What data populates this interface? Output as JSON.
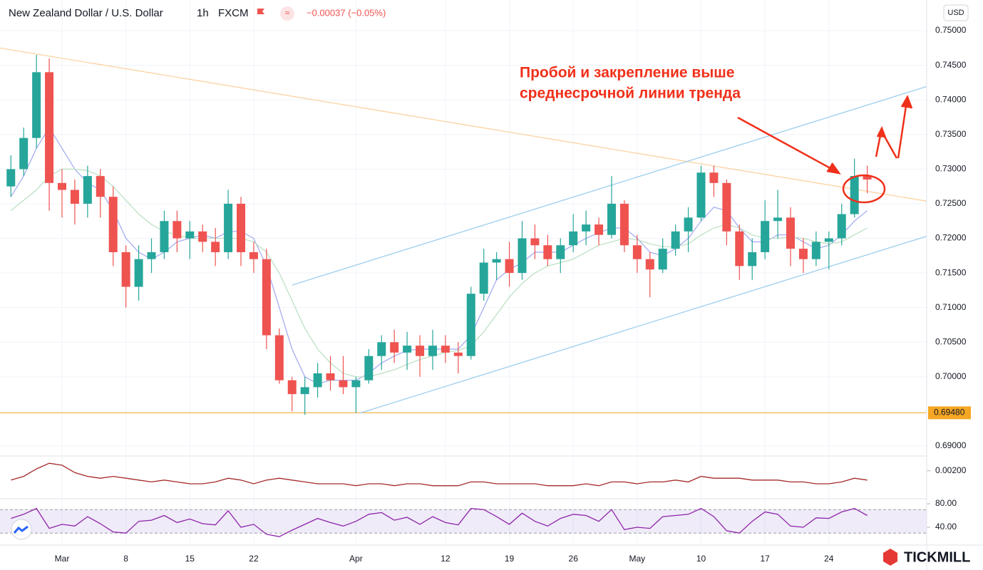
{
  "chart_data": {
    "type": "candlestick",
    "title": "New Zealand Dollar / U.S. Dollar",
    "interval": "1h",
    "source": "FXCM",
    "change": "−0.00037 (−0.05%)",
    "currency": "USD",
    "annotation": [
      "Пробой и закрепление выше",
      "среднесрочной линии тренда"
    ],
    "brand": "TICKMILL",
    "up_color": "#26a69a",
    "down_color": "#ef5350",
    "grid": true,
    "categories": [
      null,
      null,
      null,
      null,
      "Mar",
      null,
      null,
      null,
      null,
      "8",
      null,
      null,
      null,
      null,
      "15",
      null,
      null,
      null,
      null,
      "22",
      null,
      null,
      null,
      null,
      null,
      null,
      null,
      "Apr",
      null,
      null,
      null,
      null,
      null,
      null,
      "12",
      null,
      null,
      null,
      null,
      "19",
      null,
      null,
      null,
      null,
      "26",
      null,
      null,
      null,
      null,
      "May",
      null,
      null,
      null,
      null,
      "10",
      null,
      null,
      null,
      null,
      "17",
      null,
      null,
      null,
      null,
      "24",
      null,
      null,
      null
    ],
    "open": [
      0.7275,
      0.73,
      0.7345,
      0.744,
      0.728,
      0.727,
      0.725,
      0.729,
      0.726,
      0.718,
      0.713,
      0.717,
      0.718,
      0.7225,
      0.72,
      0.721,
      0.7195,
      0.718,
      0.725,
      0.718,
      0.717,
      0.706,
      0.6995,
      0.6975,
      0.6985,
      0.7005,
      0.6995,
      0.6985,
      0.6995,
      0.703,
      0.705,
      0.7035,
      0.7045,
      0.703,
      0.7045,
      0.7035,
      0.703,
      0.712,
      0.7165,
      0.717,
      0.715,
      0.72,
      0.719,
      0.717,
      0.719,
      0.721,
      0.722,
      0.7205,
      0.725,
      0.719,
      0.717,
      0.7155,
      0.7185,
      0.721,
      0.723,
      0.7295,
      0.728,
      0.721,
      0.716,
      0.718,
      0.7225,
      0.723,
      0.7185,
      0.717,
      0.7195,
      0.72,
      0.7235,
      0.729
    ],
    "high": [
      0.732,
      0.736,
      0.7465,
      0.746,
      0.73,
      0.7285,
      0.7305,
      0.73,
      0.7275,
      0.719,
      0.719,
      0.72,
      0.724,
      0.724,
      0.7225,
      0.722,
      0.7215,
      0.727,
      0.726,
      0.7195,
      0.7185,
      0.707,
      0.7,
      0.7,
      0.702,
      0.703,
      0.703,
      0.7,
      0.704,
      0.706,
      0.7068,
      0.7065,
      0.706,
      0.7068,
      0.706,
      0.705,
      0.713,
      0.7185,
      0.718,
      0.7195,
      0.7225,
      0.722,
      0.7205,
      0.72,
      0.7235,
      0.724,
      0.723,
      0.729,
      0.7255,
      0.7205,
      0.718,
      0.72,
      0.722,
      0.7245,
      0.7305,
      0.7305,
      0.7285,
      0.722,
      0.72,
      0.7255,
      0.727,
      0.7245,
      0.72,
      0.721,
      0.721,
      0.725,
      0.7315,
      0.7305
    ],
    "low": [
      0.726,
      0.729,
      0.733,
      0.724,
      0.723,
      0.722,
      0.723,
      0.723,
      0.716,
      0.71,
      0.711,
      0.715,
      0.717,
      0.718,
      0.717,
      0.718,
      0.716,
      0.717,
      0.716,
      0.715,
      0.704,
      0.699,
      0.695,
      0.6945,
      0.697,
      0.698,
      0.6975,
      0.6948,
      0.699,
      0.701,
      0.702,
      0.701,
      0.7,
      0.701,
      0.702,
      0.7005,
      0.7025,
      0.711,
      0.714,
      0.713,
      0.714,
      0.717,
      0.716,
      0.715,
      0.718,
      0.719,
      0.719,
      0.72,
      0.718,
      0.715,
      0.7115,
      0.715,
      0.7175,
      0.718,
      0.7225,
      0.726,
      0.719,
      0.714,
      0.714,
      0.717,
      0.72,
      0.716,
      0.715,
      0.716,
      0.7155,
      0.719,
      0.723,
      0.7265
    ],
    "close": [
      0.73,
      0.7345,
      0.744,
      0.728,
      0.727,
      0.725,
      0.729,
      0.726,
      0.718,
      0.713,
      0.717,
      0.718,
      0.7225,
      0.72,
      0.721,
      0.7195,
      0.718,
      0.725,
      0.718,
      0.717,
      0.706,
      0.6995,
      0.6975,
      0.6985,
      0.7005,
      0.6995,
      0.6985,
      0.6995,
      0.703,
      0.705,
      0.7035,
      0.7045,
      0.703,
      0.7045,
      0.7035,
      0.703,
      0.712,
      0.7165,
      0.717,
      0.715,
      0.72,
      0.719,
      0.717,
      0.719,
      0.721,
      0.722,
      0.7205,
      0.725,
      0.719,
      0.717,
      0.7155,
      0.7185,
      0.721,
      0.723,
      0.7295,
      0.728,
      0.721,
      0.716,
      0.718,
      0.7225,
      0.723,
      0.7185,
      0.717,
      0.7195,
      0.72,
      0.7235,
      0.729,
      0.7285
    ],
    "series": [
      {
        "color": "#9fa8f0",
        "values": [
          0.726,
          0.729,
          0.733,
          0.736,
          0.733,
          0.73,
          0.728,
          0.727,
          0.724,
          0.72,
          0.718,
          0.717,
          0.718,
          0.7195,
          0.72,
          0.7205,
          0.72,
          0.721,
          0.721,
          0.72,
          0.716,
          0.71,
          0.704,
          0.7,
          0.699,
          0.6995,
          0.6995,
          0.6995,
          0.7005,
          0.702,
          0.703,
          0.7038,
          0.704,
          0.704,
          0.704,
          0.704,
          0.706,
          0.71,
          0.714,
          0.7155,
          0.7165,
          0.718,
          0.718,
          0.718,
          0.719,
          0.72,
          0.7208,
          0.7215,
          0.7215,
          0.72,
          0.718,
          0.7175,
          0.7185,
          0.72,
          0.7225,
          0.7245,
          0.724,
          0.7215,
          0.7195,
          0.7195,
          0.7205,
          0.7205,
          0.7195,
          0.7185,
          0.719,
          0.7205,
          0.7225,
          0.724
        ]
      },
      {
        "color": "#b9dfc0",
        "values": [
          0.724,
          0.7255,
          0.727,
          0.729,
          0.73,
          0.73,
          0.7298,
          0.729,
          0.7275,
          0.7255,
          0.7235,
          0.722,
          0.721,
          0.7205,
          0.72,
          0.72,
          0.72,
          0.72,
          0.72,
          0.7195,
          0.718,
          0.715,
          0.711,
          0.707,
          0.704,
          0.702,
          0.7005,
          0.7,
          0.7,
          0.7005,
          0.701,
          0.7018,
          0.7025,
          0.703,
          0.7035,
          0.7038,
          0.7045,
          0.7065,
          0.709,
          0.7115,
          0.7135,
          0.715,
          0.716,
          0.7165,
          0.717,
          0.718,
          0.719,
          0.7195,
          0.72,
          0.7198,
          0.7192,
          0.7188,
          0.7188,
          0.7192,
          0.7205,
          0.7215,
          0.722,
          0.7215,
          0.7205,
          0.72,
          0.72,
          0.7202,
          0.72,
          0.7195,
          0.7192,
          0.7195,
          0.7205,
          0.7215
        ]
      }
    ],
    "ylim": [
      0.68856,
      0.75443
    ],
    "yticks": [
      {
        "value": 0.69,
        "label": "0.69000"
      },
      {
        "value": 0.695,
        "label": "0.69500"
      },
      {
        "value": 0.7,
        "label": "0.70000"
      },
      {
        "value": 0.705,
        "label": "0.70500"
      },
      {
        "value": 0.71,
        "label": "0.71000"
      },
      {
        "value": 0.715,
        "label": "0.71500"
      },
      {
        "value": 0.72,
        "label": "0.72000"
      },
      {
        "value": 0.725,
        "label": "0.72500"
      },
      {
        "value": 0.73,
        "label": "0.73000"
      },
      {
        "value": 0.735,
        "label": "0.73500"
      },
      {
        "value": 0.74,
        "label": "0.74000"
      },
      {
        "value": 0.745,
        "label": "0.74500"
      },
      {
        "value": 0.75,
        "label": "0.75000"
      }
    ],
    "hline": {
      "value": 0.6948,
      "label": "0.69480",
      "color": "#f5a623"
    },
    "drawings": [
      {
        "color": "#fbd3a0",
        "points": [
          [
            -0.85,
            0.7475
          ],
          [
            71.9,
            0.7253
          ]
        ]
      },
      {
        "color": "#9ccfee",
        "points": [
          [
            22.0,
            0.71325
          ],
          [
            71.9,
            0.74208
          ]
        ]
      },
      {
        "color": "#9ccfee",
        "points": [
          [
            27.3,
            0.69475
          ],
          [
            71.9,
            0.72045
          ]
        ]
      }
    ],
    "indicators": [
      {
        "type": "line",
        "color": "#a52a2a",
        "ylim": [
          0.0005,
          0.0026
        ],
        "yticks": [
          {
            "value": 0.002,
            "label": "0.00200"
          }
        ],
        "values": [
          0.0015,
          0.0017,
          0.0021,
          0.0024,
          0.0023,
          0.0019,
          0.0017,
          0.0016,
          0.0017,
          0.0016,
          0.0015,
          0.0014,
          0.0015,
          0.0014,
          0.0013,
          0.0013,
          0.0014,
          0.0016,
          0.0015,
          0.0013,
          0.0015,
          0.0016,
          0.0015,
          0.0014,
          0.0013,
          0.0013,
          0.0013,
          0.0012,
          0.0013,
          0.0013,
          0.0012,
          0.0013,
          0.0013,
          0.0012,
          0.0012,
          0.0012,
          0.0014,
          0.0014,
          0.0013,
          0.0013,
          0.0013,
          0.0013,
          0.0012,
          0.0012,
          0.0012,
          0.0013,
          0.0012,
          0.0014,
          0.0014,
          0.0013,
          0.0014,
          0.0014,
          0.0015,
          0.0014,
          0.0017,
          0.0016,
          0.0016,
          0.0016,
          0.0015,
          0.0015,
          0.0015,
          0.0014,
          0.0014,
          0.0013,
          0.0013,
          0.0014,
          0.0016,
          0.0015
        ]
      },
      {
        "type": "line",
        "color": "#8e24aa",
        "ylim": [
          15,
          82
        ],
        "yticks": [
          {
            "value": 80,
            "label": "80.00"
          },
          {
            "value": 40,
            "label": "40.00"
          }
        ],
        "band": [
          30,
          70
        ],
        "values": [
          55,
          62,
          72,
          38,
          45,
          42,
          58,
          46,
          32,
          30,
          50,
          52,
          60,
          48,
          54,
          46,
          44,
          68,
          40,
          45,
          28,
          24,
          35,
          45,
          55,
          48,
          42,
          50,
          62,
          65,
          52,
          57,
          45,
          58,
          48,
          44,
          72,
          70,
          58,
          45,
          64,
          50,
          42,
          55,
          62,
          60,
          50,
          70,
          36,
          40,
          38,
          58,
          60,
          62,
          72,
          58,
          34,
          30,
          50,
          66,
          62,
          42,
          40,
          56,
          55,
          66,
          72,
          60
        ]
      }
    ]
  }
}
